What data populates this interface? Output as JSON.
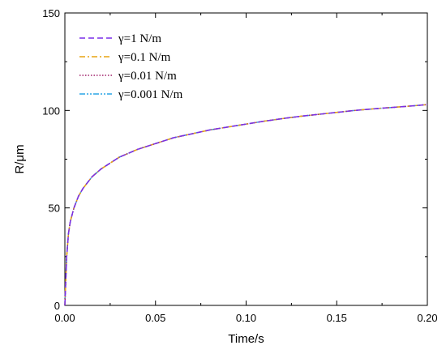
{
  "chart_data": {
    "type": "line",
    "xlabel": "Time/s",
    "ylabel": "R/μm",
    "xlim": [
      0,
      0.2
    ],
    "ylim": [
      0,
      150
    ],
    "xticks": [
      "0.00",
      "0.05",
      "0.10",
      "0.15",
      "0.20"
    ],
    "yticks": [
      "0",
      "50",
      "100",
      "150"
    ],
    "grid": false,
    "legend": "top-left",
    "x": [
      0,
      0.001,
      0.002,
      0.003,
      0.005,
      0.0075,
      0.01,
      0.015,
      0.02,
      0.03,
      0.04,
      0.05,
      0.06,
      0.07,
      0.08,
      0.09,
      0.1,
      0.11,
      0.12,
      0.13,
      0.14,
      0.15,
      0.16,
      0.17,
      0.18,
      0.19,
      0.2
    ],
    "series": [
      {
        "name": "γ=1 N/m",
        "color": "#7a2ee8",
        "dash": "dash",
        "values": [
          0,
          25,
          37,
          43,
          50,
          56,
          60,
          66,
          70,
          76,
          80,
          83,
          86,
          88,
          90,
          91.5,
          93,
          94.5,
          95.8,
          97,
          98,
          99,
          100,
          100.8,
          101.5,
          102.2,
          103
        ]
      },
      {
        "name": "γ=0.1 N/m",
        "color": "#e8a410",
        "dash": "dashdot",
        "values": [
          0,
          25,
          37,
          43,
          50,
          56,
          60,
          66,
          70,
          76,
          80,
          83,
          86,
          88,
          90,
          91.5,
          93,
          94.5,
          95.8,
          97,
          98,
          99,
          100,
          100.8,
          101.5,
          102.2,
          103
        ]
      },
      {
        "name": "γ=0.01 N/m",
        "color": "#a0206a",
        "dash": "dot",
        "values": [
          0,
          25,
          37,
          43,
          50,
          56,
          60,
          66,
          70,
          76,
          80,
          83,
          86,
          88,
          90,
          91.5,
          93,
          94.5,
          95.8,
          97,
          98,
          99,
          100,
          100.8,
          101.5,
          102.2,
          103
        ]
      },
      {
        "name": "γ=0.001 N/m",
        "color": "#2aa6e6",
        "dash": "dashdotdot",
        "values": [
          0,
          25,
          37,
          43,
          50,
          56,
          60,
          66,
          70,
          76,
          80,
          83,
          86,
          88,
          90,
          91.5,
          93,
          94.5,
          95.8,
          97,
          98,
          99,
          100,
          100.8,
          101.5,
          102.2,
          103
        ]
      }
    ]
  }
}
